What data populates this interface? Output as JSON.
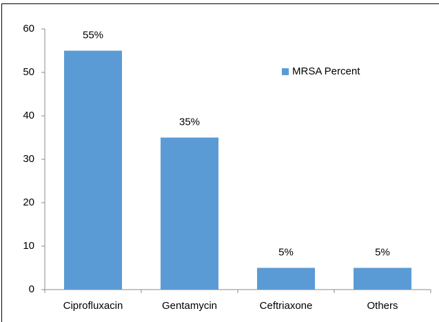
{
  "chart_data": {
    "type": "bar",
    "categories": [
      "Ciprofluxacin",
      "Gentamycin",
      "Ceftriaxone",
      "Others"
    ],
    "series": [
      {
        "name": "MRSA Percent",
        "color": "#5b9bd5",
        "values": [
          55,
          35,
          5,
          5
        ],
        "value_labels": [
          "55%",
          "35%",
          "5%",
          "5%"
        ]
      }
    ],
    "ylim": [
      0,
      60
    ],
    "yticks": [
      0,
      10,
      20,
      30,
      40,
      50,
      60
    ],
    "grid": false
  }
}
